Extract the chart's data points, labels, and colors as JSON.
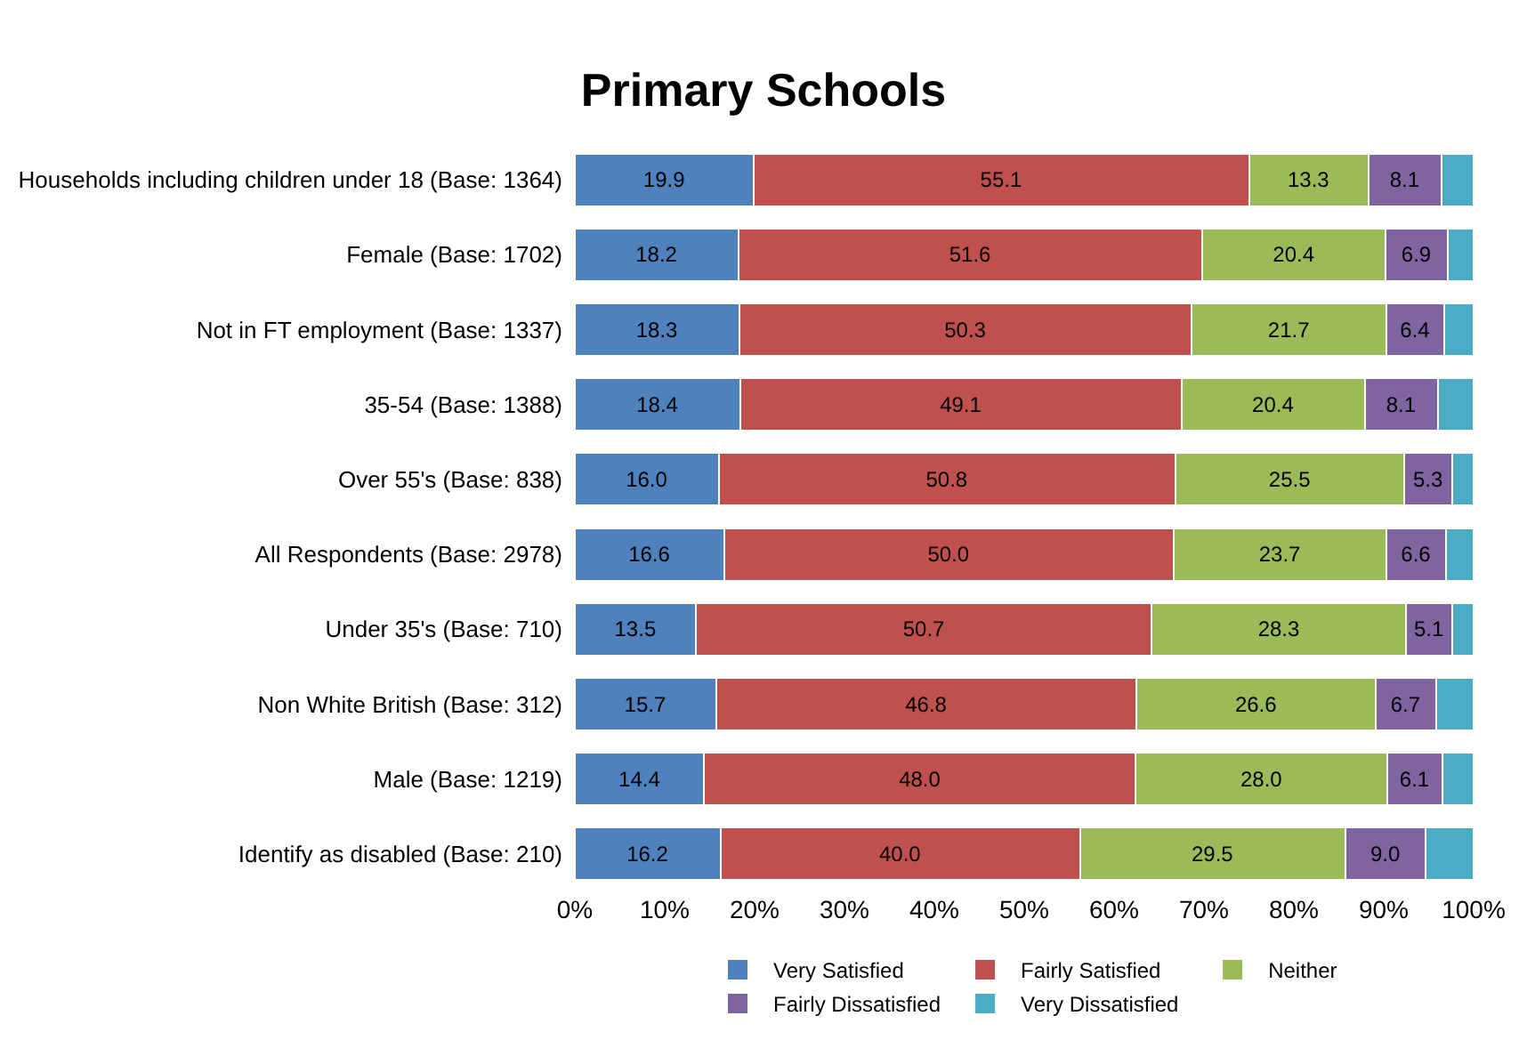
{
  "chart_data": {
    "type": "bar",
    "orientation": "horizontal",
    "stacked": true,
    "title": "Primary Schools",
    "categories": [
      "Households including children under 18 (Base: 1364)",
      "Female (Base: 1702)",
      "Not in FT employment (Base: 1337)",
      "35-54 (Base: 1388)",
      "Over 55's (Base: 838)",
      "All Respondents (Base: 2978)",
      "Under 35's (Base: 710)",
      "Non White British (Base: 312)",
      "Male (Base: 1219)",
      "Identify as disabled (Base: 210)"
    ],
    "series": [
      {
        "name": "Very Satisfied",
        "color": "#4f81bd",
        "values": [
          19.9,
          18.2,
          18.3,
          18.4,
          16.0,
          16.6,
          13.5,
          15.7,
          14.4,
          16.2
        ],
        "value_labels": [
          "19.9",
          "18.2",
          "18.3",
          "18.4",
          "16.0",
          "16.6",
          "13.5",
          "15.7",
          "14.4",
          "16.2"
        ]
      },
      {
        "name": "Fairly Satisfied",
        "color": "#c0504d",
        "values": [
          55.1,
          51.6,
          50.3,
          49.1,
          50.8,
          50.0,
          50.7,
          46.8,
          48.0,
          40.0
        ],
        "value_labels": [
          "55.1",
          "51.6",
          "50.3",
          "49.1",
          "50.8",
          "50.0",
          "50.7",
          "46.8",
          "48.0",
          "40.0"
        ]
      },
      {
        "name": "Neither",
        "color": "#9bbb59",
        "values": [
          13.3,
          20.4,
          21.7,
          20.4,
          25.5,
          23.7,
          28.3,
          26.6,
          28.0,
          29.5
        ],
        "value_labels": [
          "13.3",
          "20.4",
          "21.7",
          "20.4",
          "25.5",
          "23.7",
          "28.3",
          "26.6",
          "28.0",
          "29.5"
        ]
      },
      {
        "name": "Fairly Dissatisfied",
        "color": "#8064a2",
        "values": [
          8.1,
          6.9,
          6.4,
          8.1,
          5.3,
          6.6,
          5.1,
          6.7,
          6.1,
          9.0
        ],
        "value_labels": [
          "8.1",
          "6.9",
          "6.4",
          "8.1",
          "5.3",
          "6.6",
          "5.1",
          "6.7",
          "6.1",
          "9.0"
        ]
      },
      {
        "name": "Very Dissatisfied",
        "color": "#4bacc6",
        "values": [
          3.6,
          2.9,
          3.3,
          4.0,
          2.4,
          3.1,
          2.4,
          4.2,
          3.5,
          5.3
        ]
      }
    ],
    "xlim": [
      0,
      100
    ],
    "xticks": [
      {
        "value": 0,
        "label": "0%"
      },
      {
        "value": 10,
        "label": "10%"
      },
      {
        "value": 20,
        "label": "20%"
      },
      {
        "value": 30,
        "label": "30%"
      },
      {
        "value": 40,
        "label": "40%"
      },
      {
        "value": 50,
        "label": "50%"
      },
      {
        "value": 60,
        "label": "60%"
      },
      {
        "value": 70,
        "label": "70%"
      },
      {
        "value": 80,
        "label": "80%"
      },
      {
        "value": 90,
        "label": "90%"
      },
      {
        "value": 100,
        "label": "100%"
      }
    ],
    "legend": "bottom"
  }
}
